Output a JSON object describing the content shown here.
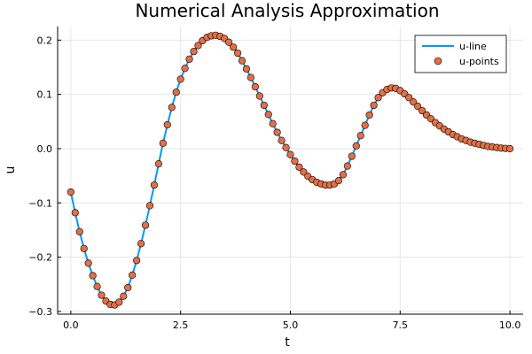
{
  "chart_data": {
    "type": "line",
    "title": "Numerical Analysis Approximation",
    "xlabel": "t",
    "ylabel": "u",
    "xlim": [
      -0.3,
      10.3
    ],
    "ylim": [
      -0.305,
      0.225
    ],
    "x_ticks": [
      0.0,
      2.5,
      5.0,
      7.5,
      10.0
    ],
    "x_tick_labels": [
      "0.0",
      "2.5",
      "5.0",
      "7.5",
      "10.0"
    ],
    "y_ticks": [
      -0.3,
      -0.2,
      -0.1,
      0.0,
      0.1,
      0.2
    ],
    "y_tick_labels": [
      "−0.3",
      "−0.2",
      "−0.1",
      "0.0",
      "0.1",
      "0.2"
    ],
    "grid": true,
    "legend_position": "top-right",
    "series": [
      {
        "name": "u-line",
        "style": "line",
        "color": "#009af9"
      },
      {
        "name": "u-points",
        "style": "scatter",
        "color": "#e26f46"
      }
    ],
    "points_t": [
      0.0,
      0.1,
      0.2,
      0.3,
      0.4,
      0.5,
      0.6,
      0.7,
      0.8,
      0.9,
      1.0,
      1.1,
      1.2,
      1.3,
      1.4,
      1.5,
      1.6,
      1.7,
      1.8,
      1.9,
      2.0,
      2.1,
      2.2,
      2.3,
      2.4,
      2.5,
      2.6,
      2.7,
      2.8,
      2.9,
      3.0,
      3.1,
      3.2,
      3.3,
      3.4,
      3.5,
      3.6,
      3.7,
      3.8,
      3.9,
      4.0,
      4.1,
      4.2,
      4.3,
      4.4,
      4.5,
      4.6,
      4.7,
      4.8,
      4.9,
      5.0,
      5.1,
      5.2,
      5.3,
      5.4,
      5.5,
      5.6,
      5.7,
      5.8,
      5.9,
      6.0,
      6.1,
      6.2,
      6.3,
      6.4,
      6.5,
      6.6,
      6.7,
      6.8,
      6.9,
      7.0,
      7.1,
      7.2,
      7.3,
      7.4,
      7.5,
      7.6,
      7.7,
      7.8,
      7.9,
      8.0,
      8.1,
      8.2,
      8.3,
      8.4,
      8.5,
      8.6,
      8.7,
      8.8,
      8.9,
      9.0,
      9.1,
      9.2,
      9.3,
      9.4,
      9.5,
      9.6,
      9.7,
      9.8,
      9.9,
      10.0
    ],
    "points_u": [
      -0.08,
      -0.118,
      -0.153,
      -0.184,
      -0.211,
      -0.234,
      -0.254,
      -0.27,
      -0.281,
      -0.287,
      -0.288,
      -0.283,
      -0.272,
      -0.256,
      -0.233,
      -0.206,
      -0.175,
      -0.141,
      -0.105,
      -0.067,
      -0.028,
      0.01,
      0.044,
      0.076,
      0.104,
      0.128,
      0.148,
      0.165,
      0.179,
      0.19,
      0.199,
      0.205,
      0.208,
      0.209,
      0.207,
      0.203,
      0.196,
      0.187,
      0.176,
      0.162,
      0.147,
      0.131,
      0.114,
      0.097,
      0.08,
      0.063,
      0.046,
      0.03,
      0.015,
      0.002,
      -0.011,
      -0.023,
      -0.034,
      -0.043,
      -0.051,
      -0.057,
      -0.062,
      -0.065,
      -0.067,
      -0.067,
      -0.065,
      -0.059,
      -0.048,
      -0.032,
      -0.014,
      0.005,
      0.024,
      0.043,
      0.062,
      0.08,
      0.094,
      0.103,
      0.109,
      0.112,
      0.111,
      0.107,
      0.101,
      0.094,
      0.086,
      0.078,
      0.07,
      0.062,
      0.055,
      0.048,
      0.042,
      0.036,
      0.031,
      0.026,
      0.022,
      0.018,
      0.015,
      0.012,
      0.01,
      0.008,
      0.006,
      0.004,
      0.003,
      0.002,
      0.001,
      0.0005,
      0.0
    ]
  }
}
